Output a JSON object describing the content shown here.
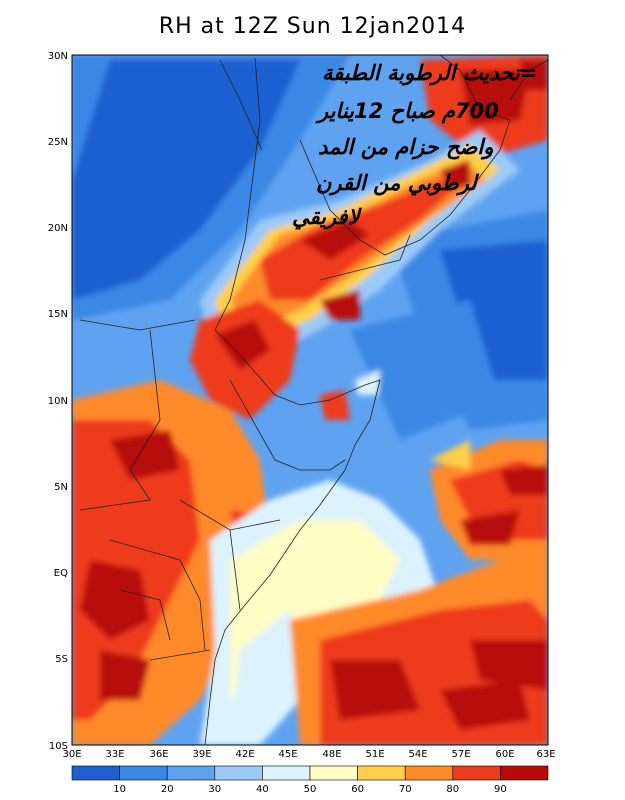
{
  "title": "RH at 12Z Sun 12jan2014",
  "annotation_lines": [
    "=تحديث الرطوبة الطبقة",
    "700م صباح 12يناير",
    "واضح حزام من المد",
    "لرطوبي من القرن",
    "لافريقي"
  ],
  "lat_labels": [
    "30N",
    "25N",
    "20N",
    "15N",
    "10N",
    "5N",
    "EQ",
    "5S",
    "10S"
  ],
  "lon_labels": [
    "30E",
    "33E",
    "36E",
    "39E",
    "42E",
    "45E",
    "48E",
    "51E",
    "54E",
    "57E",
    "60E",
    "63E"
  ],
  "colorbar": {
    "colors": [
      "#1f5fd0",
      "#3b87e6",
      "#5fa3f0",
      "#9ccaf8",
      "#dcf3fd",
      "#fffcc6",
      "#ffcf4a",
      "#ff8a2a",
      "#ee3a1c",
      "#b80a08"
    ],
    "labels": [
      "10",
      "20",
      "30",
      "40",
      "50",
      "60",
      "70",
      "80",
      "90"
    ]
  },
  "chart_data": {
    "type": "heatmap",
    "title": "RH at 12Z Sun 12jan2014",
    "variable": "RH",
    "x_range": [
      30,
      63
    ],
    "y_range": [
      -10,
      30
    ],
    "levels": [
      10,
      20,
      30,
      40,
      50,
      60,
      70,
      80,
      90
    ]
  }
}
